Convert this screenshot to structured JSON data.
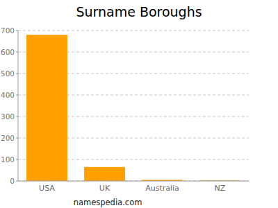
{
  "chart_data": {
    "type": "bar",
    "title": "Surname Boroughs",
    "categories": [
      "USA",
      "UK",
      "Australia",
      "NZ"
    ],
    "values": [
      680,
      65,
      5,
      2
    ],
    "color": "#ffa000",
    "ylim": [
      0,
      700
    ],
    "yticks": [
      0,
      100,
      200,
      300,
      400,
      500,
      600,
      700
    ],
    "grid": true,
    "annotation": "namespedia.com"
  }
}
